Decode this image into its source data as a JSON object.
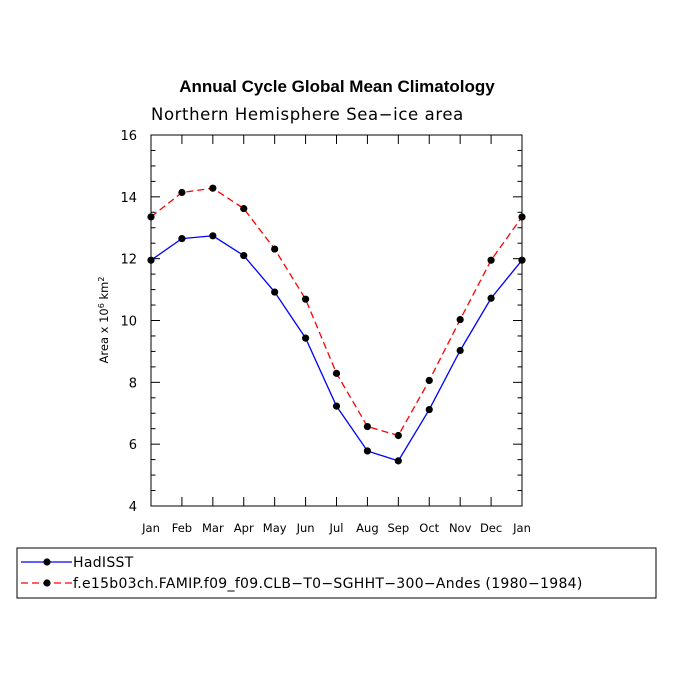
{
  "chart_data": {
    "type": "line",
    "title": "Annual Cycle Global Mean Climatology",
    "subtitle": "Northern Hemisphere Sea−ice area",
    "ylabel_main": "Area x 10",
    "ylabel_exp": "6",
    "ylabel_unit": " km",
    "ylabel_unit_exp": "2",
    "ylim": [
      4,
      16
    ],
    "yticks": [
      "4",
      "6",
      "8",
      "10",
      "12",
      "14",
      "16"
    ],
    "categories": [
      "Jan",
      "Feb",
      "Mar",
      "Apr",
      "May",
      "Jun",
      "Jul",
      "Aug",
      "Sep",
      "Oct",
      "Nov",
      "Dec",
      "Jan"
    ],
    "series": [
      {
        "name": "HadISST",
        "color": "#0000ff",
        "dash": "solid",
        "values": [
          11.95,
          12.65,
          12.74,
          12.1,
          10.92,
          9.43,
          7.23,
          5.78,
          5.46,
          7.12,
          9.03,
          10.72,
          11.95
        ]
      },
      {
        "name": "f.e15b03ch.FAMIP.f09_f09.CLB−T0−SGHHT−300−Andes (1980−1984)",
        "color": "#ff0000",
        "dash": "dashed",
        "values": [
          13.35,
          14.14,
          14.28,
          13.62,
          12.31,
          10.69,
          8.29,
          6.57,
          6.28,
          8.06,
          10.03,
          11.95,
          13.35
        ]
      }
    ]
  }
}
